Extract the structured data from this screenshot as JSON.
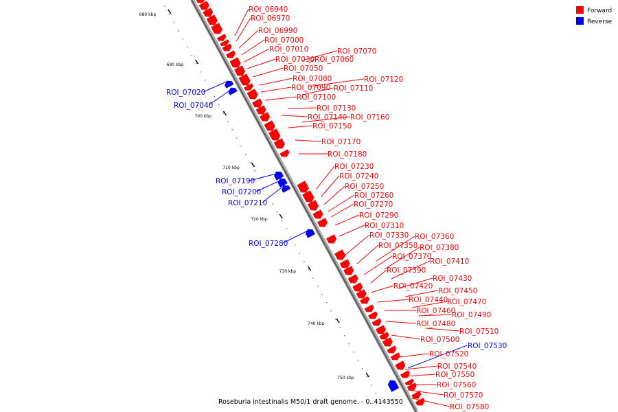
{
  "legend": [
    {
      "label": "Forward",
      "color": "#ff0000"
    },
    {
      "label": "Reverse",
      "color": "#0000ff"
    }
  ],
  "caption": "Roseburia intestinalis M50/1 draft genome. - 0..4143550",
  "ticks": [
    "680 kbp",
    "690 kbp",
    "700 kbp",
    "710 kbp",
    "720 kbp",
    "730 kbp",
    "740 kbp",
    "750 kbp"
  ],
  "forward_labels": [
    "ROI_06940",
    "ROI_06970",
    "ROI_06990",
    "ROI_07000",
    "ROI_07010",
    "ROI_07030",
    "ROI_07060",
    "ROI_07070",
    "ROI_07050",
    "ROI_07080",
    "ROI_07120",
    "ROI_07090",
    "ROI_07110",
    "ROI_07100",
    "ROI_07130",
    "ROI_07140",
    "ROI_07160",
    "ROI_07150",
    "ROI_07170",
    "ROI_07180",
    "ROI_07230",
    "ROI_07240",
    "ROI_07250",
    "ROI_07260",
    "ROI_07270",
    "ROI_07290",
    "ROI_07310",
    "ROI_07330",
    "ROI_07360",
    "ROI_07350",
    "ROI_07380",
    "ROI_07370",
    "ROI_07410",
    "ROI_07390",
    "ROI_07430",
    "ROI_07420",
    "ROI_07450",
    "ROI_07440",
    "ROI_07470",
    "ROI_07460",
    "ROI_07490",
    "ROI_07480",
    "ROI_07510",
    "ROI_07500",
    "ROI_07520",
    "ROI_07540",
    "ROI_07550",
    "ROI_07560",
    "ROI_07570",
    "ROI_07580"
  ],
  "reverse_labels": [
    "ROI_07020",
    "ROI_07040",
    "ROI_07190",
    "ROI_07200",
    "ROI_07210",
    "ROI_07280",
    "ROI_07530"
  ]
}
